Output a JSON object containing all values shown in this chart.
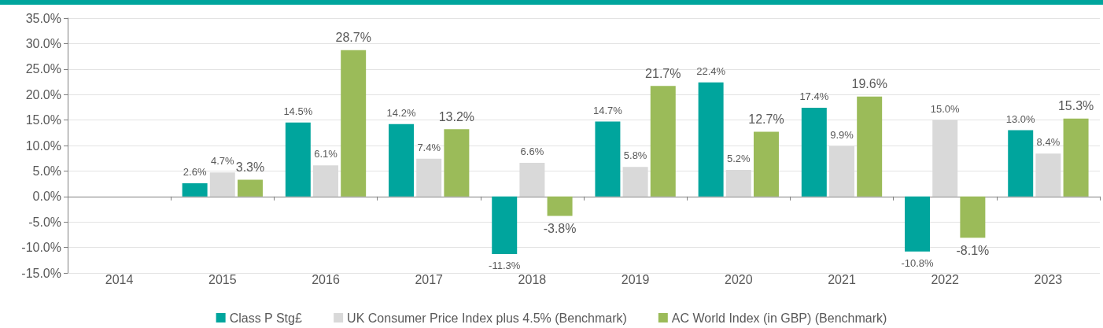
{
  "chart_data": {
    "type": "bar",
    "categories": [
      "2014",
      "2015",
      "2016",
      "2017",
      "2018",
      "2019",
      "2020",
      "2021",
      "2022",
      "2023"
    ],
    "series": [
      {
        "name": "Class P Stg£",
        "color": "#00a59d",
        "values": [
          null,
          2.6,
          14.5,
          14.2,
          -11.3,
          14.7,
          22.4,
          17.4,
          -10.8,
          13.0
        ],
        "value_labels": [
          null,
          "2.6%",
          "14.5%",
          "14.2%",
          "-11.3%",
          "14.7%",
          "22.4%",
          "17.4%",
          "-10.8%",
          "13.0%"
        ]
      },
      {
        "name": "UK Consumer Price Index plus 4.5% (Benchmark)",
        "color": "#d9d9d9",
        "values": [
          null,
          4.7,
          6.1,
          7.4,
          6.6,
          5.8,
          5.2,
          9.9,
          15.0,
          8.4
        ],
        "value_labels": [
          null,
          "4.7%",
          "6.1%",
          "7.4%",
          "6.6%",
          "5.8%",
          "5.2%",
          "9.9%",
          "15.0%",
          "8.4%"
        ]
      },
      {
        "name": "AC World Index (in GBP) (Benchmark)",
        "color": "#9bbb59",
        "values": [
          null,
          3.3,
          28.7,
          13.2,
          -3.8,
          21.7,
          12.7,
          19.6,
          -8.1,
          15.3
        ],
        "value_labels": [
          null,
          "3.3%",
          "28.7%",
          "13.2%",
          "-3.8%",
          "21.7%",
          "12.7%",
          "19.6%",
          "-8.1%",
          "15.3%"
        ]
      }
    ],
    "ylim": [
      -15,
      35
    ],
    "yticks": [
      {
        "value": -15,
        "label": "-15.0%"
      },
      {
        "value": -10,
        "label": "-10.0%"
      },
      {
        "value": -5,
        "label": "-5.0%"
      },
      {
        "value": 0,
        "label": "0.0%"
      },
      {
        "value": 5,
        "label": "5.0%"
      },
      {
        "value": 10,
        "label": "10.0%"
      },
      {
        "value": 15,
        "label": "15.0%"
      },
      {
        "value": 20,
        "label": "20.0%"
      },
      {
        "value": 25,
        "label": "25.0%"
      },
      {
        "value": 30,
        "label": "30.0%"
      },
      {
        "value": 35,
        "label": "35.0%"
      }
    ],
    "grid": "y",
    "legend": "bottom"
  }
}
